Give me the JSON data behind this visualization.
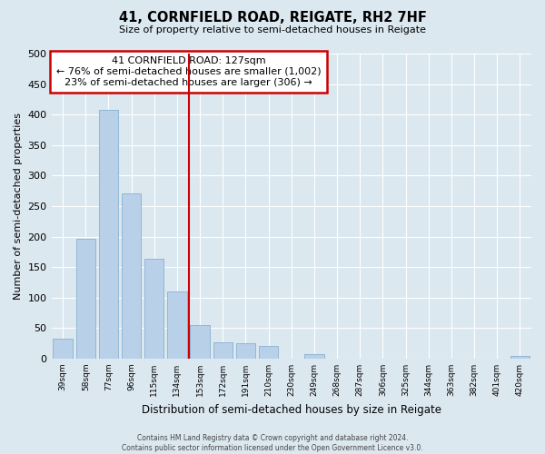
{
  "title": "41, CORNFIELD ROAD, REIGATE, RH2 7HF",
  "subtitle": "Size of property relative to semi-detached houses in Reigate",
  "xlabel": "Distribution of semi-detached houses by size in Reigate",
  "ylabel": "Number of semi-detached properties",
  "bar_labels": [
    "39sqm",
    "58sqm",
    "77sqm",
    "96sqm",
    "115sqm",
    "134sqm",
    "153sqm",
    "172sqm",
    "191sqm",
    "210sqm",
    "230sqm",
    "249sqm",
    "268sqm",
    "287sqm",
    "306sqm",
    "325sqm",
    "344sqm",
    "363sqm",
    "382sqm",
    "401sqm",
    "420sqm"
  ],
  "bar_values": [
    33,
    197,
    408,
    271,
    163,
    110,
    55,
    26,
    25,
    20,
    0,
    7,
    0,
    0,
    0,
    0,
    0,
    0,
    0,
    0,
    4
  ],
  "bar_color": "#b8d0e8",
  "bar_edge_color": "#8ab0d0",
  "vline_x": 5,
  "vline_color": "#cc0000",
  "annotation_title": "41 CORNFIELD ROAD: 127sqm",
  "annotation_line1": "← 76% of semi-detached houses are smaller (1,002)",
  "annotation_line2": "23% of semi-detached houses are larger (306) →",
  "annotation_box_color": "#ffffff",
  "annotation_box_edge": "#cc0000",
  "ylim": [
    0,
    500
  ],
  "footer1": "Contains HM Land Registry data © Crown copyright and database right 2024.",
  "footer2": "Contains public sector information licensed under the Open Government Licence v3.0.",
  "background_color": "#dce8f0"
}
